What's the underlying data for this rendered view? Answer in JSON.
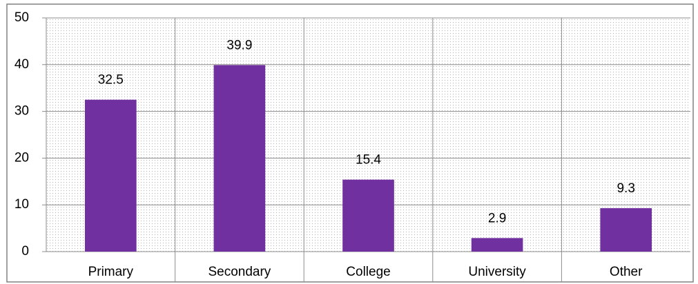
{
  "chart_data": {
    "type": "bar",
    "categories": [
      "Primary",
      "Secondary",
      "College",
      "University",
      "Other"
    ],
    "values": [
      32.5,
      39.9,
      15.4,
      2.9,
      9.3
    ],
    "color": "#7030a0",
    "ylim": [
      0,
      50
    ],
    "yticks": [
      0,
      10,
      20,
      30,
      40,
      50
    ],
    "grid": true
  }
}
